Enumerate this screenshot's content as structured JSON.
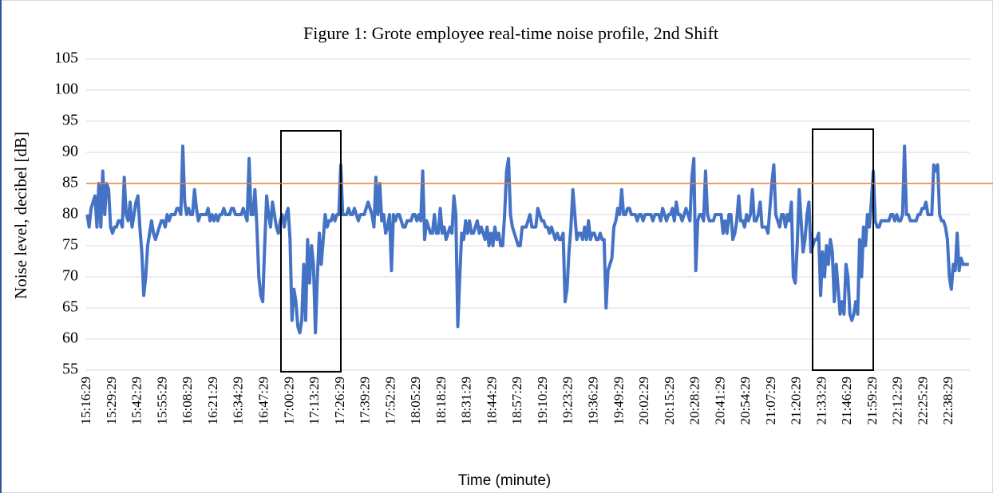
{
  "chart_data": {
    "type": "line",
    "title": "Figure 1: Grote employee real-time noise profile, 2nd Shift",
    "x_label": "Time (minute)",
    "y_label": "Noise level, decibel [dB]",
    "ylim": [
      55,
      105
    ],
    "yticks": [
      55,
      60,
      65,
      70,
      75,
      80,
      85,
      90,
      95,
      100,
      105
    ],
    "grid": true,
    "reference_line": {
      "value": 85,
      "color": "#ed7d31"
    },
    "categories": [
      "15:16:29",
      null,
      null,
      null,
      null,
      null,
      null,
      null,
      null,
      null,
      null,
      null,
      null,
      "15:29:29",
      null,
      null,
      null,
      null,
      null,
      null,
      null,
      null,
      null,
      null,
      null,
      null,
      "15:42:29",
      null,
      null,
      null,
      null,
      null,
      null,
      null,
      null,
      null,
      null,
      null,
      null,
      "15:55:29",
      null,
      null,
      null,
      null,
      null,
      null,
      null,
      null,
      null,
      null,
      null,
      null,
      "16:08:29",
      null,
      null,
      null,
      null,
      null,
      null,
      null,
      null,
      null,
      null,
      null,
      null,
      "16:21:29",
      null,
      null,
      null,
      null,
      null,
      null,
      null,
      null,
      null,
      null,
      null,
      null,
      "16:34:29",
      null,
      null,
      null,
      null,
      null,
      null,
      null,
      null,
      null,
      null,
      null,
      null,
      "16:47:29",
      null,
      null,
      null,
      null,
      null,
      null,
      null,
      null,
      null,
      null,
      null,
      null,
      "17:00:29",
      null,
      null,
      null,
      null,
      null,
      null,
      null,
      null,
      null,
      null,
      null,
      null,
      "17:13:29",
      null,
      null,
      null,
      null,
      null,
      null,
      null,
      null,
      null,
      null,
      null,
      null,
      "17:26:29",
      null,
      null,
      null,
      null,
      null,
      null,
      null,
      null,
      null,
      null,
      null,
      null,
      "17:39:29",
      null,
      null,
      null,
      null,
      null,
      null,
      null,
      null,
      null,
      null,
      null,
      null,
      "17:52:29",
      null,
      null,
      null,
      null,
      null,
      null,
      null,
      null,
      null,
      null,
      null,
      null,
      "18:05:29",
      null,
      null,
      null,
      null,
      null,
      null,
      null,
      null,
      null,
      null,
      null,
      null,
      "18:18:29",
      null,
      null,
      null,
      null,
      null,
      null,
      null,
      null,
      null,
      null,
      null,
      null,
      "18:31:29",
      null,
      null,
      null,
      null,
      null,
      null,
      null,
      null,
      null,
      null,
      null,
      null,
      "18:44:29",
      null,
      null,
      null,
      null,
      null,
      null,
      null,
      null,
      null,
      null,
      null,
      null,
      "18:57:29",
      null,
      null,
      null,
      null,
      null,
      null,
      null,
      null,
      null,
      null,
      null,
      null,
      "19:10:29",
      null,
      null,
      null,
      null,
      null,
      null,
      null,
      null,
      null,
      null,
      null,
      null,
      "19:23:29",
      null,
      null,
      null,
      null,
      null,
      null,
      null,
      null,
      null,
      null,
      null,
      null,
      "19:36:29",
      null,
      null,
      null,
      null,
      null,
      null,
      null,
      null,
      null,
      null,
      null,
      null,
      "19:49:29",
      null,
      null,
      null,
      null,
      null,
      null,
      null,
      null,
      null,
      null,
      null,
      null,
      "20:02:29",
      null,
      null,
      null,
      null,
      null,
      null,
      null,
      null,
      null,
      null,
      null,
      null,
      "20:15:29",
      null,
      null,
      null,
      null,
      null,
      null,
      null,
      null,
      null,
      null,
      null,
      null,
      "20:28:29",
      null,
      null,
      null,
      null,
      null,
      null,
      null,
      null,
      null,
      null,
      null,
      null,
      "20:41:29",
      null,
      null,
      null,
      null,
      null,
      null,
      null,
      null,
      null,
      null,
      null,
      null,
      "20:54:29",
      null,
      null,
      null,
      null,
      null,
      null,
      null,
      null,
      null,
      null,
      null,
      null,
      "21:07:29",
      null,
      null,
      null,
      null,
      null,
      null,
      null,
      null,
      null,
      null,
      null,
      null,
      "21:20:29",
      null,
      null,
      null,
      null,
      null,
      null,
      null,
      null,
      null,
      null,
      null,
      null,
      "21:33:29",
      null,
      null,
      null,
      null,
      null,
      null,
      null,
      null,
      null,
      null,
      null,
      null,
      "21:46:29",
      null,
      null,
      null,
      null,
      null,
      null,
      null,
      null,
      null,
      null,
      null,
      null,
      "21:59:29",
      null,
      null,
      null,
      null,
      null,
      null,
      null,
      null,
      null,
      null,
      null,
      null,
      "22:12:29",
      null,
      null,
      null,
      null,
      null,
      null,
      null,
      null,
      null,
      null,
      null,
      null,
      "22:25:29",
      null,
      null,
      null,
      null,
      null,
      null,
      null,
      null,
      null,
      null,
      null,
      null,
      "22:38:29",
      null,
      null,
      null,
      null,
      null,
      null,
      null,
      null,
      null,
      null
    ],
    "series": [
      {
        "color": "#4472c4",
        "values": [
          80,
          78,
          81,
          82,
          83,
          78,
          85,
          78,
          87,
          80,
          85,
          84,
          78,
          77,
          78,
          78,
          79,
          79,
          78,
          86,
          80,
          79,
          82,
          78,
          80,
          82,
          83,
          78,
          74,
          67,
          70,
          75,
          77,
          79,
          77,
          76,
          77,
          78,
          79,
          79,
          78,
          80,
          79,
          80,
          80,
          80,
          81,
          81,
          80,
          91,
          82,
          80,
          81,
          80,
          80,
          84,
          81,
          79,
          80,
          80,
          80,
          80,
          81,
          79,
          80,
          79,
          80,
          79,
          80,
          80,
          81,
          80,
          80,
          80,
          81,
          81,
          80,
          80,
          80,
          80,
          81,
          80,
          79,
          89,
          80,
          80,
          84,
          78,
          70,
          67,
          66,
          75,
          83,
          80,
          78,
          82,
          80,
          78,
          77,
          79,
          80,
          78,
          80,
          81,
          76,
          63,
          68,
          66,
          62,
          61,
          63,
          72,
          63,
          76,
          69,
          75,
          72,
          61,
          70,
          77,
          72,
          76,
          80,
          78,
          79,
          79,
          80,
          79,
          80,
          80,
          88,
          80,
          80,
          80,
          81,
          80,
          80,
          81,
          80,
          79,
          80,
          80,
          80,
          81,
          82,
          81,
          80,
          78,
          86,
          80,
          85,
          79,
          80,
          77,
          78,
          80,
          71,
          80,
          79,
          80,
          80,
          79,
          78,
          78,
          79,
          79,
          79,
          80,
          80,
          79,
          80,
          79,
          87,
          76,
          79,
          78,
          77,
          77,
          80,
          77,
          77,
          81,
          77,
          78,
          76,
          77,
          78,
          77,
          83,
          80,
          62,
          70,
          77,
          76,
          79,
          77,
          79,
          77,
          77,
          78,
          79,
          77,
          78,
          77,
          76,
          78,
          75,
          77,
          75,
          78,
          76,
          77,
          75,
          75,
          80,
          87,
          89,
          80,
          78,
          77,
          76,
          75,
          75,
          78,
          78,
          78,
          79,
          80,
          78,
          78,
          78,
          81,
          80,
          79,
          79,
          78,
          78,
          77,
          78,
          77,
          76,
          77,
          76,
          76,
          77,
          66,
          68,
          74,
          78,
          84,
          80,
          76,
          77,
          77,
          76,
          78,
          76,
          79,
          76,
          77,
          77,
          76,
          76,
          77,
          76,
          76,
          65,
          71,
          72,
          73,
          78,
          79,
          81,
          80,
          84,
          80,
          80,
          81,
          81,
          80,
          80,
          80,
          79,
          80,
          80,
          79,
          80,
          80,
          80,
          80,
          79,
          80,
          80,
          80,
          79,
          81,
          80,
          79,
          80,
          80,
          81,
          79,
          82,
          80,
          80,
          79,
          80,
          81,
          80,
          79,
          86,
          89,
          71,
          79,
          80,
          80,
          79,
          87,
          80,
          79,
          79,
          79,
          80,
          80,
          80,
          80,
          77,
          79,
          77,
          80,
          80,
          76,
          77,
          79,
          83,
          79,
          79,
          78,
          80,
          79,
          80,
          84,
          79,
          79,
          80,
          82,
          78,
          78,
          78,
          77,
          81,
          85,
          88,
          80,
          79,
          78,
          80,
          80,
          78,
          80,
          79,
          82,
          70,
          69,
          75,
          84,
          79,
          74,
          76,
          80,
          82,
          74,
          75,
          76,
          76,
          77,
          67,
          74,
          70,
          75,
          72,
          76,
          74,
          66,
          72,
          68,
          64,
          66,
          64,
          72,
          70,
          64,
          63,
          64,
          66,
          64,
          76,
          70,
          78,
          75,
          80,
          78,
          82,
          87,
          79,
          78,
          78,
          79,
          79,
          79,
          79,
          79,
          80,
          80,
          79,
          80,
          79,
          79,
          80,
          91,
          80,
          80,
          79,
          79,
          79,
          79,
          80,
          80,
          81,
          81,
          82,
          80,
          80,
          80,
          88,
          87,
          88,
          80,
          79,
          79,
          78,
          76,
          70,
          68,
          72,
          71,
          77,
          71,
          73,
          72,
          72,
          72,
          72
        ]
      }
    ]
  }
}
